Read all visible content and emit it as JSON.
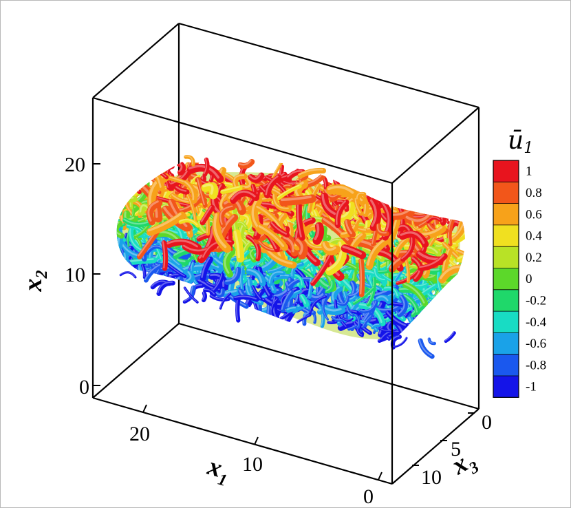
{
  "figure": {
    "x1_axis": {
      "symbol": "x",
      "subscript": "1",
      "ticks": [
        "20",
        "10",
        "0"
      ]
    },
    "x2_axis": {
      "symbol": "x",
      "subscript": "2",
      "ticks": [
        "20",
        "10",
        "0"
      ]
    },
    "x3_axis": {
      "symbol": "x",
      "subscript": "3",
      "ticks": [
        "0",
        "5",
        "10"
      ]
    },
    "colorbar": {
      "title_symbol": "ū",
      "title_subscript": "1",
      "labels": [
        "1",
        "0.8",
        "0.6",
        "0.4",
        "0.2",
        "0",
        "-0.2",
        "-0.4",
        "-0.6",
        "-0.8",
        "-1"
      ],
      "colors": [
        "#e8141e",
        "#f2561a",
        "#f7a21a",
        "#f0e020",
        "#b8e226",
        "#5cd82a",
        "#1fd86a",
        "#18dcc4",
        "#1aa2e8",
        "#1a58ee",
        "#1414e8"
      ]
    },
    "content": {
      "palette": [
        "#1414e8",
        "#1a58ee",
        "#1aa2e8",
        "#18dcc4",
        "#1fd86a",
        "#5cd82a",
        "#b8e226",
        "#f0e020",
        "#f7a21a",
        "#f2561a",
        "#e8141e"
      ]
    }
  }
}
